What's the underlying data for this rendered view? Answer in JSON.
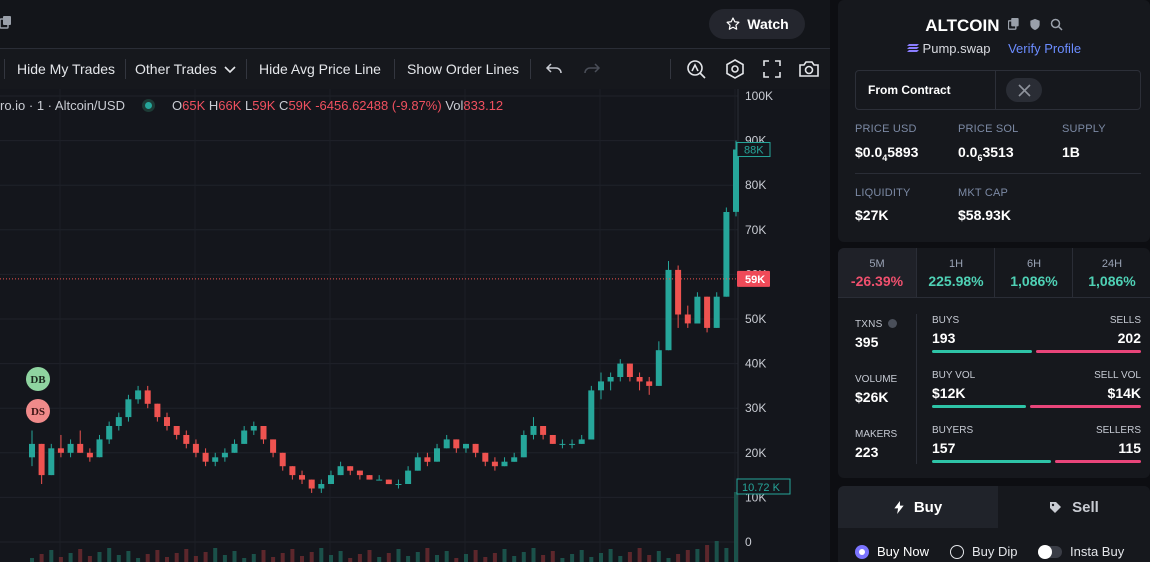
{
  "topbar": {
    "watch_label": "Watch"
  },
  "toolbar": {
    "hide_my_trades": "Hide My Trades",
    "other_trades": "Other Trades",
    "hide_avg_price_line": "Hide Avg Price Line",
    "show_order_lines": "Show Order Lines"
  },
  "chart": {
    "symbol": "ro.io · 1 · Altcoin/USD",
    "o_label": "O",
    "o_val": "65K",
    "h_label": "H",
    "h_val": "66K",
    "l_label": "L",
    "l_val": "59K",
    "c_label": "C",
    "c_val": "59K",
    "change": "-6456.62488 (-9.87%)",
    "vol_label": "Vol",
    "vol_val": "833.12",
    "price_axis": [
      "100K",
      "90K",
      "80K",
      "70K",
      "60K",
      "50K",
      "40K",
      "30K",
      "20K",
      "10K",
      "0"
    ],
    "high_tag": "88K",
    "current_tag": "59K",
    "volume_tag": "10.72 K",
    "marker_db": "DB",
    "marker_ds": "DS",
    "colors": {
      "up": "#26a69a",
      "down": "#ef5350",
      "background": "#14161c"
    }
  },
  "chart_data": {
    "type": "candlestick",
    "ylim": [
      0,
      100000
    ],
    "current_price": 59000,
    "candles": [
      [
        19000,
        25000,
        17000,
        22000
      ],
      [
        22000,
        22000,
        13000,
        15000
      ],
      [
        15000,
        22000,
        15000,
        21000
      ],
      [
        21000,
        24000,
        19000,
        20000
      ],
      [
        20000,
        23000,
        19000,
        22000
      ],
      [
        22000,
        25000,
        20000,
        20000
      ],
      [
        20000,
        21000,
        18000,
        19000
      ],
      [
        19000,
        24000,
        19000,
        23000
      ],
      [
        23000,
        27000,
        22000,
        26000
      ],
      [
        26000,
        29000,
        25000,
        28000
      ],
      [
        28000,
        33000,
        27000,
        32000
      ],
      [
        32000,
        35000,
        31000,
        34000
      ],
      [
        34000,
        35000,
        30000,
        31000
      ],
      [
        31000,
        31000,
        27000,
        28000
      ],
      [
        28000,
        29000,
        25000,
        26000
      ],
      [
        26000,
        26000,
        23000,
        24000
      ],
      [
        24000,
        25000,
        21000,
        22000
      ],
      [
        22000,
        23000,
        19000,
        20000
      ],
      [
        20000,
        21000,
        17000,
        18000
      ],
      [
        18000,
        20000,
        17000,
        19000
      ],
      [
        19000,
        21000,
        18000,
        20000
      ],
      [
        20000,
        23000,
        20000,
        22000
      ],
      [
        22000,
        26000,
        22000,
        25000
      ],
      [
        25000,
        27000,
        24000,
        26000
      ],
      [
        26000,
        26000,
        22000,
        23000
      ],
      [
        23000,
        23000,
        19000,
        20000
      ],
      [
        20000,
        20000,
        16000,
        17000
      ],
      [
        17000,
        17000,
        14000,
        15000
      ],
      [
        15000,
        16000,
        13000,
        14000
      ],
      [
        14000,
        14000,
        11000,
        12000
      ],
      [
        12000,
        14000,
        11000,
        13000
      ],
      [
        13000,
        16000,
        13000,
        15000
      ],
      [
        15000,
        18000,
        15000,
        17000
      ],
      [
        17000,
        17000,
        15000,
        16000
      ],
      [
        16000,
        16000,
        14000,
        15000
      ],
      [
        15000,
        15000,
        14000,
        14000
      ],
      [
        14000,
        15000,
        14000,
        14000
      ],
      [
        14000,
        14000,
        13000,
        13000
      ],
      [
        13000,
        14000,
        12000,
        13000
      ],
      [
        13000,
        17000,
        13000,
        16000
      ],
      [
        16000,
        20000,
        16000,
        19000
      ],
      [
        19000,
        20000,
        17000,
        18000
      ],
      [
        18000,
        22000,
        18000,
        21000
      ],
      [
        21000,
        24000,
        21000,
        23000
      ],
      [
        23000,
        23000,
        20000,
        21000
      ],
      [
        21000,
        22000,
        20000,
        22000
      ],
      [
        22000,
        22000,
        19000,
        20000
      ],
      [
        20000,
        20000,
        17000,
        18000
      ],
      [
        18000,
        19000,
        16000,
        17000
      ],
      [
        17000,
        19000,
        17000,
        18000
      ],
      [
        18000,
        20000,
        18000,
        19000
      ],
      [
        19000,
        25000,
        19000,
        24000
      ],
      [
        24000,
        28000,
        23000,
        26000
      ],
      [
        26000,
        26000,
        23000,
        24000
      ],
      [
        24000,
        24000,
        22000,
        22000
      ],
      [
        22000,
        23000,
        21000,
        22000
      ],
      [
        22000,
        23000,
        21000,
        22000
      ],
      [
        22000,
        24000,
        22000,
        23000
      ],
      [
        23000,
        35000,
        23000,
        34000
      ],
      [
        34000,
        38000,
        32000,
        36000
      ],
      [
        36000,
        38000,
        34000,
        37000
      ],
      [
        37000,
        41000,
        36000,
        40000
      ],
      [
        40000,
        40000,
        36000,
        37000
      ],
      [
        37000,
        38000,
        34000,
        36000
      ],
      [
        36000,
        37000,
        33000,
        35000
      ],
      [
        35000,
        45000,
        35000,
        43000
      ],
      [
        43000,
        63000,
        43000,
        61000
      ],
      [
        61000,
        62000,
        48000,
        51000
      ],
      [
        51000,
        53000,
        48000,
        49000
      ],
      [
        49000,
        56000,
        49000,
        55000
      ],
      [
        55000,
        55000,
        47000,
        48000
      ],
      [
        48000,
        56000,
        48000,
        55000
      ],
      [
        55000,
        75000,
        55000,
        74000
      ],
      [
        74000,
        90000,
        73000,
        88000
      ]
    ]
  },
  "token": {
    "name": "ALTCOIN",
    "dex": "Pump.swap",
    "verify": "Verify Profile",
    "from_contract": "From Contract",
    "x_label": "X",
    "price_usd_label": "PRICE USD",
    "price_usd_pre": "$0.0",
    "price_usd_sub": "4",
    "price_usd_post": "5893",
    "price_sol_label": "PRICE SOL",
    "price_sol_pre": "0.0",
    "price_sol_sub": "6",
    "price_sol_post": "3513",
    "supply_label": "SUPPLY",
    "supply_val": "1B",
    "liquidity_label": "LIQUIDITY",
    "liquidity_val": "$27K",
    "mktcap_label": "MKT CAP",
    "mktcap_val": "$58.93K"
  },
  "timeframes": [
    {
      "label": "5M",
      "value": "-26.39%",
      "color": "#f0506e"
    },
    {
      "label": "1H",
      "value": "225.98%",
      "color": "#4fd1b5"
    },
    {
      "label": "6H",
      "value": "1,086%",
      "color": "#4fd1b5"
    },
    {
      "label": "24H",
      "value": "1,086%",
      "color": "#4fd1b5"
    }
  ],
  "txstats": {
    "txns_label": "TXNS",
    "txns_val": "395",
    "volume_label": "VOLUME",
    "volume_val": "$26K",
    "makers_label": "MAKERS",
    "makers_val": "223",
    "buys_label": "BUYS",
    "buys_val": "193",
    "sells_label": "SELLS",
    "sells_val": "202",
    "buyvol_label": "BUY VOL",
    "buyvol_val": "$12K",
    "sellvol_label": "SELL VOL",
    "sellvol_val": "$14K",
    "buyers_label": "BUYERS",
    "buyers_val": "157",
    "sellers_label": "SELLERS",
    "sellers_val": "115",
    "buy_ratio": 0.49,
    "buyvol_ratio": 0.46,
    "buyers_ratio": 0.58,
    "buy_color": "#2ec4a7",
    "sell_color": "#e8457a"
  },
  "trade": {
    "buy_tab": "Buy",
    "sell_tab": "Sell",
    "buy_now": "Buy Now",
    "buy_dip": "Buy Dip",
    "insta_buy": "Insta Buy"
  }
}
